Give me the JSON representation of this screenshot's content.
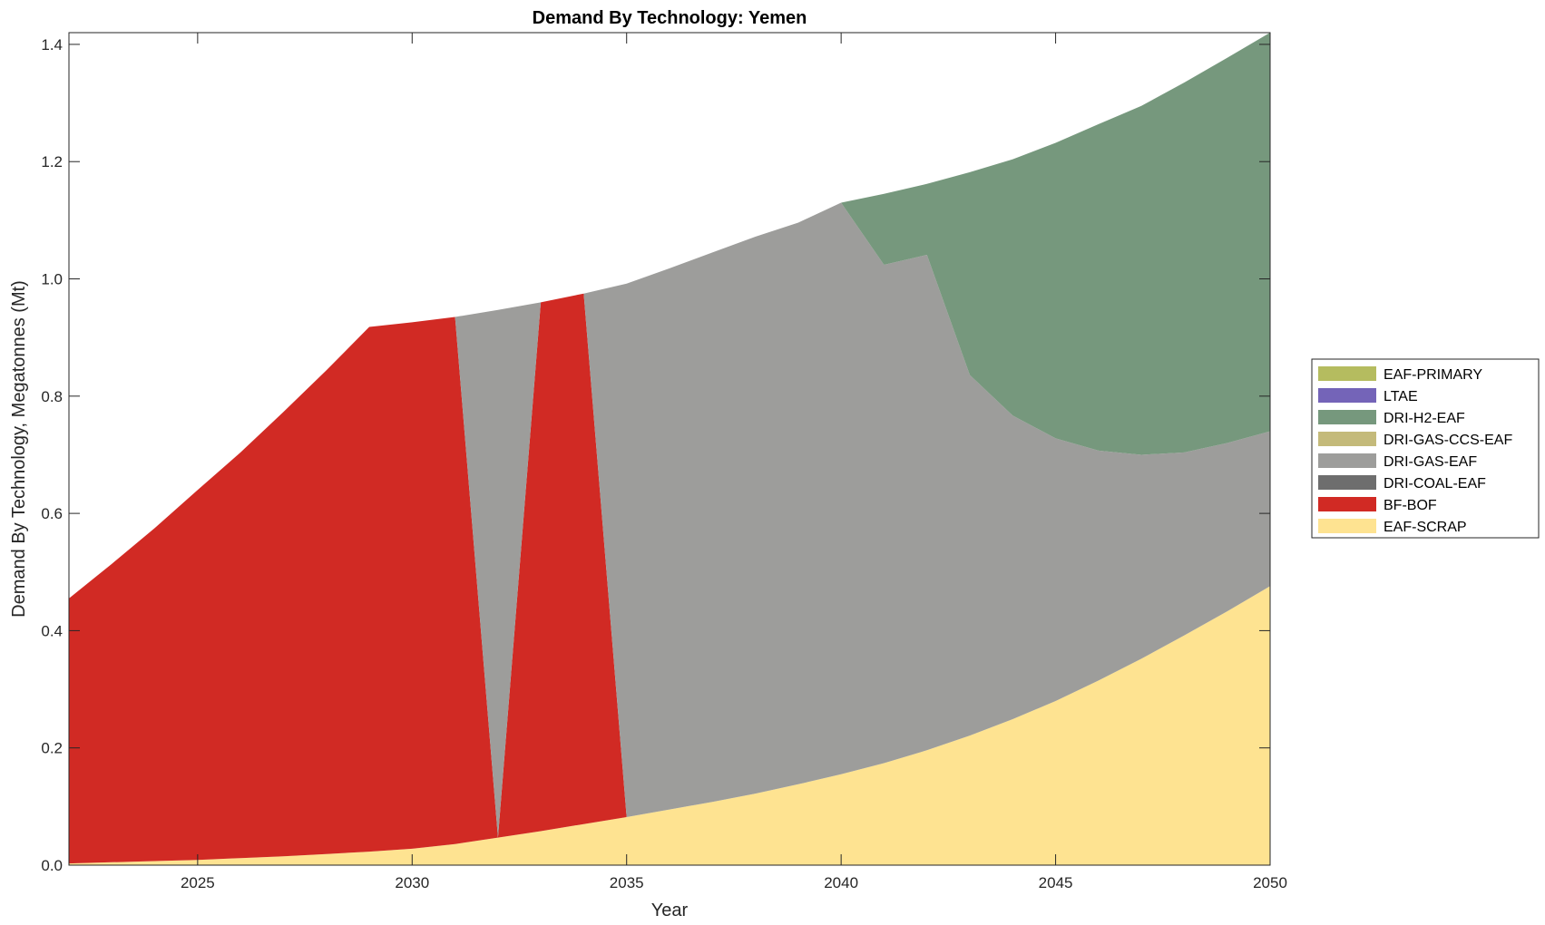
{
  "chart_data": {
    "type": "area",
    "stacked": true,
    "title": "Demand By Technology: Yemen",
    "xlabel": "Year",
    "ylabel": "Demand By Technology, Megatonnes (Mt)",
    "xlim": [
      2022,
      2050
    ],
    "ylim": [
      0,
      1.42
    ],
    "x_ticks": [
      2025,
      2030,
      2035,
      2040,
      2045,
      2050
    ],
    "y_ticks": [
      0.0,
      0.2,
      0.4,
      0.6,
      0.8,
      1.0,
      1.2,
      1.4
    ],
    "y_tick_labels": [
      "0.0",
      "0.2",
      "0.4",
      "0.6",
      "0.8",
      "1.0",
      "1.2",
      "1.4"
    ],
    "grid": false,
    "legend_position": "right",
    "x": [
      2022,
      2023,
      2024,
      2025,
      2026,
      2027,
      2028,
      2029,
      2030,
      2031,
      2032,
      2033,
      2034,
      2035,
      2036,
      2037,
      2038,
      2039,
      2040,
      2041,
      2042,
      2043,
      2044,
      2045,
      2046,
      2047,
      2048,
      2049,
      2050
    ],
    "series": [
      {
        "name": "EAF-SCRAP",
        "color": "#FEE391",
        "values": [
          0.003,
          0.005,
          0.007,
          0.009,
          0.012,
          0.015,
          0.019,
          0.023,
          0.028,
          0.036,
          0.047,
          0.058,
          0.07,
          0.082,
          0.095,
          0.108,
          0.122,
          0.138,
          0.155,
          0.174,
          0.196,
          0.221,
          0.249,
          0.28,
          0.315,
          0.352,
          0.392,
          0.433,
          0.476
        ]
      },
      {
        "name": "BF-BOF",
        "color": "#D12A24",
        "values": [
          0.452,
          0.509,
          0.568,
          0.631,
          0.692,
          0.758,
          0.825,
          0.895,
          0.898,
          0.899,
          0,
          0.902,
          0.905,
          0,
          0,
          0,
          0,
          0,
          0,
          0,
          0,
          0,
          0,
          0,
          0,
          0,
          0,
          0,
          0
        ]
      },
      {
        "name": "DRI-COAL-EAF",
        "color": "#6E6E6E",
        "values": [
          0,
          0,
          0,
          0,
          0,
          0,
          0,
          0,
          0,
          0,
          0,
          0,
          0,
          0,
          0,
          0,
          0,
          0,
          0,
          0,
          0,
          0,
          0,
          0,
          0,
          0,
          0,
          0,
          0
        ]
      },
      {
        "name": "DRI-GAS-EAF",
        "color": "#9D9D9B",
        "values": [
          0,
          0,
          0,
          0,
          0,
          0,
          0,
          0,
          0,
          0,
          0.9,
          0,
          0,
          0.91,
          0.923,
          0.937,
          0.95,
          0.958,
          0.975,
          0.85,
          0.845,
          0.615,
          0.518,
          0.448,
          0.392,
          0.348,
          0.312,
          0.287,
          0.264
        ]
      },
      {
        "name": "DRI-GAS-CCS-EAF",
        "color": "#C4BA7A",
        "values": [
          0,
          0,
          0,
          0,
          0,
          0,
          0,
          0,
          0,
          0,
          0,
          0,
          0,
          0,
          0,
          0,
          0,
          0,
          0,
          0,
          0,
          0,
          0,
          0,
          0,
          0,
          0,
          0,
          0
        ]
      },
      {
        "name": "DRI-H2-EAF",
        "color": "#76987D",
        "values": [
          0,
          0,
          0,
          0,
          0,
          0,
          0,
          0,
          0,
          0,
          0,
          0,
          0,
          0,
          0,
          0,
          0,
          0,
          0,
          0.121,
          0.121,
          0.346,
          0.437,
          0.504,
          0.557,
          0.595,
          0.631,
          0.657,
          0.68
        ]
      },
      {
        "name": "LTAE",
        "color": "#7464B8",
        "values": [
          0,
          0,
          0,
          0,
          0,
          0,
          0,
          0,
          0,
          0,
          0,
          0,
          0,
          0,
          0,
          0,
          0,
          0,
          0,
          0,
          0,
          0,
          0,
          0,
          0,
          0,
          0,
          0,
          0
        ]
      },
      {
        "name": "EAF-PRIMARY",
        "color": "#B5BC5F",
        "values": [
          0,
          0,
          0,
          0,
          0,
          0,
          0,
          0,
          0,
          0,
          0,
          0,
          0,
          0,
          0,
          0,
          0,
          0,
          0,
          0,
          0,
          0,
          0,
          0,
          0,
          0,
          0,
          0,
          0
        ]
      }
    ],
    "legend_order": [
      "EAF-PRIMARY",
      "LTAE",
      "DRI-H2-EAF",
      "DRI-GAS-CCS-EAF",
      "DRI-GAS-EAF",
      "DRI-COAL-EAF",
      "BF-BOF",
      "EAF-SCRAP"
    ]
  }
}
